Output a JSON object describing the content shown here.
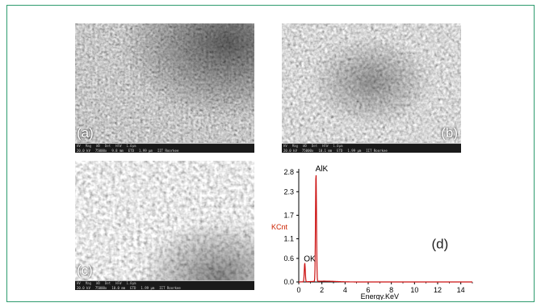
{
  "panels": [
    {
      "id": "a",
      "label": "(a)",
      "labels_row": [
        "HV",
        "Mag",
        "WD",
        "Det",
        "HFW"
      ],
      "values_row": [
        "20.0 kV",
        "75000x",
        "9.8 mm",
        "ETD",
        "1.99 μm"
      ],
      "scale": "1.0μm",
      "vendor": "IIT Roorkee"
    },
    {
      "id": "b",
      "label": "(b)",
      "labels_row": [
        "HV",
        "Mag",
        "WD",
        "Det",
        "HFW"
      ],
      "values_row": [
        "20.0 kV",
        "75000x",
        "10.1 mm",
        "ETD",
        "1.99 μm"
      ],
      "scale": "1.0μm",
      "vendor": "IIT Roorkee"
    },
    {
      "id": "c",
      "label": "(c)",
      "labels_row": [
        "HV",
        "Mag",
        "WD",
        "Det",
        "HFW"
      ],
      "values_row": [
        "20.0 kV",
        "75000x",
        "10.0 mm",
        "ETD",
        "1.99 μm"
      ],
      "scale": "1.0μm",
      "vendor": "IIT Roorkee"
    }
  ],
  "chart_data": {
    "type": "line",
    "panel_label": "(d)",
    "xlabel": "Energy.KeV",
    "ylabel": "KCnt",
    "xlim": [
      0,
      15
    ],
    "ylim": [
      0,
      2.8
    ],
    "x_ticks": [
      0,
      2,
      4,
      6,
      8,
      10,
      12,
      14
    ],
    "y_ticks": [
      0.0,
      0.6,
      1.1,
      1.7,
      2.3,
      2.8
    ],
    "y_tick_labels": [
      "0.0",
      "0.6",
      "1.1",
      "1.7",
      "2.3",
      "2.8"
    ],
    "peaks": [
      {
        "label": "OK",
        "x": 0.52,
        "y": 0.48
      },
      {
        "label": "AlK",
        "x": 1.49,
        "y": 2.78
      }
    ],
    "colors": {
      "line": "#cc1111",
      "ylabel": "#cc2200",
      "axis": "#000000"
    }
  }
}
